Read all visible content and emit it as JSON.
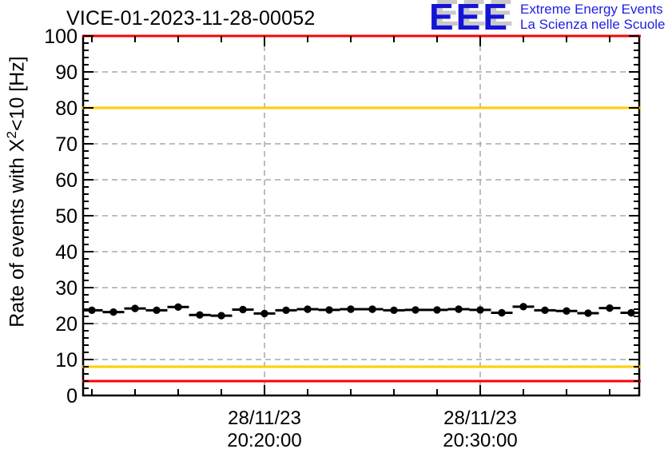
{
  "header": {
    "title": "VICE-01-2023-11-28-00052"
  },
  "logo": {
    "acronym": "EEE",
    "line1": "Extreme Energy Events",
    "line2": "La Scienza nelle Scuole",
    "blue": "#1414d6",
    "shadow_gray": "#c9c9c9"
  },
  "y_axis": {
    "label_pre": "Rate of events with X",
    "label_sup": "2",
    "label_post": "<10 [Hz]"
  },
  "chart_data": {
    "type": "line",
    "title": "VICE-01-2023-11-28-00052",
    "ylabel": "Rate of events with X^2<10 [Hz]",
    "xlabel": "",
    "ylim": [
      0,
      100
    ],
    "y_major_step": 10,
    "y_minor_step": 2,
    "grid": "dashed",
    "grid_color": "#a8a8a8",
    "frame_color": "#000000",
    "marker_color": "#000000",
    "x": [
      "20:12",
      "20:13",
      "20:14",
      "20:15",
      "20:16",
      "20:17",
      "20:18",
      "20:19",
      "20:20",
      "20:21",
      "20:22",
      "20:23",
      "20:24",
      "20:25",
      "20:26",
      "20:27",
      "20:28",
      "20:29",
      "20:30",
      "20:31",
      "20:32",
      "20:33",
      "20:34",
      "20:35",
      "20:36",
      "20:37"
    ],
    "values": [
      23.7,
      23.2,
      24.2,
      23.7,
      24.6,
      22.4,
      22.2,
      23.9,
      22.8,
      23.7,
      24.0,
      23.8,
      24.0,
      24.0,
      23.7,
      23.8,
      23.8,
      24.0,
      23.8,
      23.0,
      24.7,
      23.7,
      23.5,
      22.9,
      24.3,
      23.0
    ],
    "bin_width_minutes": 1,
    "x_minor_step_min": 2,
    "x_range_min": [
      -8.4,
      17.4
    ],
    "x_major_ticks": [
      {
        "label_date": "28/11/23",
        "label_time": "20:20:00",
        "offset_min": 0
      },
      {
        "label_date": "28/11/23",
        "label_time": "20:30:00",
        "offset_min": 10
      }
    ],
    "thresholds": [
      {
        "value": 100,
        "color": "#ff0000",
        "name": "alarm-high"
      },
      {
        "value": 80,
        "color": "#ffcc00",
        "name": "warn-high"
      },
      {
        "value": 8,
        "color": "#ffcc00",
        "name": "warn-low"
      },
      {
        "value": 4,
        "color": "#ff0000",
        "name": "alarm-low"
      }
    ]
  }
}
